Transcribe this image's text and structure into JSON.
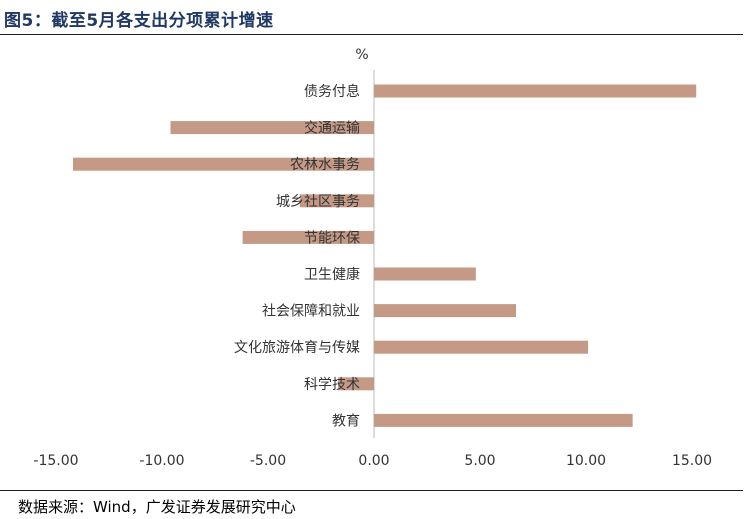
{
  "header": {
    "title": "图5：截至5月各支出分项累计增速"
  },
  "footer": {
    "source": "数据来源：Wind，广发证券发展研究中心"
  },
  "colors": {
    "bar": "#c49a86",
    "title": "#1f3864",
    "axis": "#d0d0d0",
    "text": "#333333"
  },
  "chart_data": {
    "type": "bar",
    "orientation": "horizontal",
    "unit": "%",
    "categories": [
      "债务付息",
      "交通运输",
      "农林水事务",
      "城乡社区事务",
      "节能环保",
      "卫生健康",
      "社会保障和就业",
      "文化旅游体育与传媒",
      "科学技术",
      "教育"
    ],
    "values": [
      15.2,
      -9.6,
      -14.2,
      -3.5,
      -6.2,
      4.8,
      6.7,
      10.1,
      -1.7,
      12.2
    ],
    "xlim": [
      -15,
      15
    ],
    "xticks": [
      "-15.00",
      "-10.00",
      "-5.00",
      "0.00",
      "5.00",
      "10.00",
      "15.00"
    ],
    "xtick_values": [
      -15,
      -10,
      -5,
      0,
      5,
      10,
      15
    ],
    "grid": false,
    "legend": "none"
  }
}
